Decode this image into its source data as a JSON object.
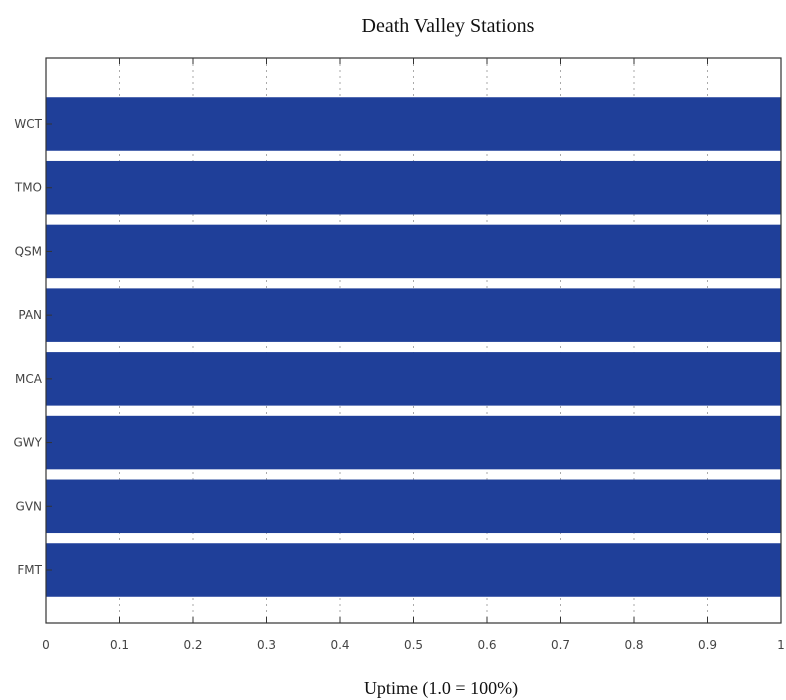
{
  "chart_data": {
    "type": "bar",
    "orientation": "horizontal",
    "title": "Death Valley Stations",
    "xlabel": "Uptime  (1.0 = 100%)",
    "ylabel": "",
    "categories": [
      "WCT",
      "TMO",
      "QSM",
      "PAN",
      "MCA",
      "GWY",
      "GVN",
      "FMT"
    ],
    "values": [
      1.0,
      1.0,
      1.0,
      1.0,
      1.0,
      1.0,
      1.0,
      1.0
    ],
    "xlim": [
      0,
      1
    ],
    "xticks": [
      "0",
      "0.1",
      "0.2",
      "0.3",
      "0.4",
      "0.5",
      "0.6",
      "0.7",
      "0.8",
      "0.9",
      "1"
    ],
    "grid": "vertical-dotted",
    "colors": {
      "bar": "#1f3f99",
      "axes": "#333333"
    }
  }
}
